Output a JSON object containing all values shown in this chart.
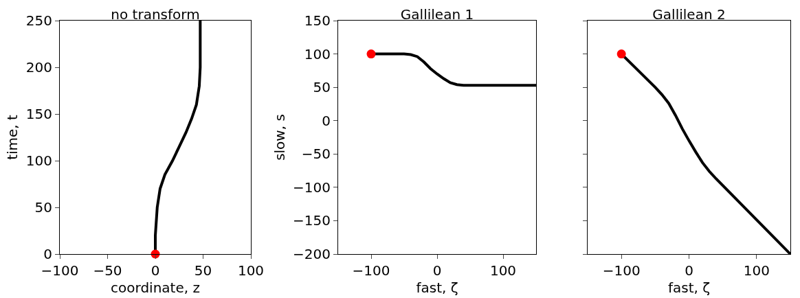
{
  "chart_data": [
    {
      "type": "line",
      "title": "no transform",
      "xlabel": "coordinate, z",
      "ylabel": "time, t",
      "xlim": [
        -100,
        100
      ],
      "ylim": [
        0,
        250
      ],
      "xticks": [
        -100,
        -50,
        0,
        50,
        100
      ],
      "yticks": [
        0,
        50,
        100,
        150,
        200,
        250
      ],
      "grid": false,
      "legend": false,
      "series": [
        {
          "type": "line",
          "color": "#000000",
          "marker": "none",
          "x": [
            0,
            0,
            2,
            5,
            10,
            18,
            25,
            32,
            38,
            43,
            46,
            47,
            47
          ],
          "values": [
            0,
            20,
            50,
            70,
            85,
            100,
            115,
            130,
            145,
            160,
            180,
            200,
            250
          ]
        },
        {
          "type": "scatter",
          "color": "#ff0000",
          "marker": "circle",
          "x": [
            0
          ],
          "values": [
            0
          ]
        }
      ]
    },
    {
      "type": "line",
      "title": "Gallilean 1",
      "xlabel": "fast, ζ",
      "ylabel": "slow, s",
      "xlim": [
        -150,
        150
      ],
      "ylim": [
        -200,
        150
      ],
      "xticks": [
        -100,
        0,
        100
      ],
      "yticks": [
        -200,
        -150,
        -100,
        -50,
        0,
        50,
        100,
        150
      ],
      "grid": false,
      "legend": false,
      "series": [
        {
          "type": "line",
          "color": "#000000",
          "marker": "none",
          "x": [
            -100,
            -50,
            -40,
            -30,
            -20,
            -10,
            0,
            10,
            20,
            30,
            40,
            150
          ],
          "values": [
            100,
            100,
            99,
            96,
            88,
            78,
            70,
            63,
            57,
            54,
            53,
            53
          ]
        },
        {
          "type": "scatter",
          "color": "#ff0000",
          "marker": "circle",
          "x": [
            -100
          ],
          "values": [
            100
          ]
        }
      ]
    },
    {
      "type": "line",
      "title": "Gallilean 2",
      "xlabel": "fast, ζ",
      "xlim": [
        -150,
        150
      ],
      "ylim": [
        -200,
        150
      ],
      "xticks": [
        -100,
        0,
        100
      ],
      "yticks": [
        -200,
        -150,
        -100,
        -50,
        0,
        50,
        100,
        150
      ],
      "grid": false,
      "legend": false,
      "tick_labels": "x",
      "series": [
        {
          "type": "line",
          "color": "#000000",
          "marker": "none",
          "x": [
            -100,
            -50,
            -40,
            -30,
            -20,
            -10,
            0,
            10,
            20,
            30,
            40,
            150
          ],
          "values": [
            100,
            50,
            39,
            26,
            8,
            -12,
            -30,
            -47,
            -63,
            -76,
            -87,
            -200
          ]
        },
        {
          "type": "scatter",
          "color": "#ff0000",
          "marker": "circle",
          "x": [
            -100
          ],
          "values": [
            100
          ]
        }
      ]
    }
  ]
}
